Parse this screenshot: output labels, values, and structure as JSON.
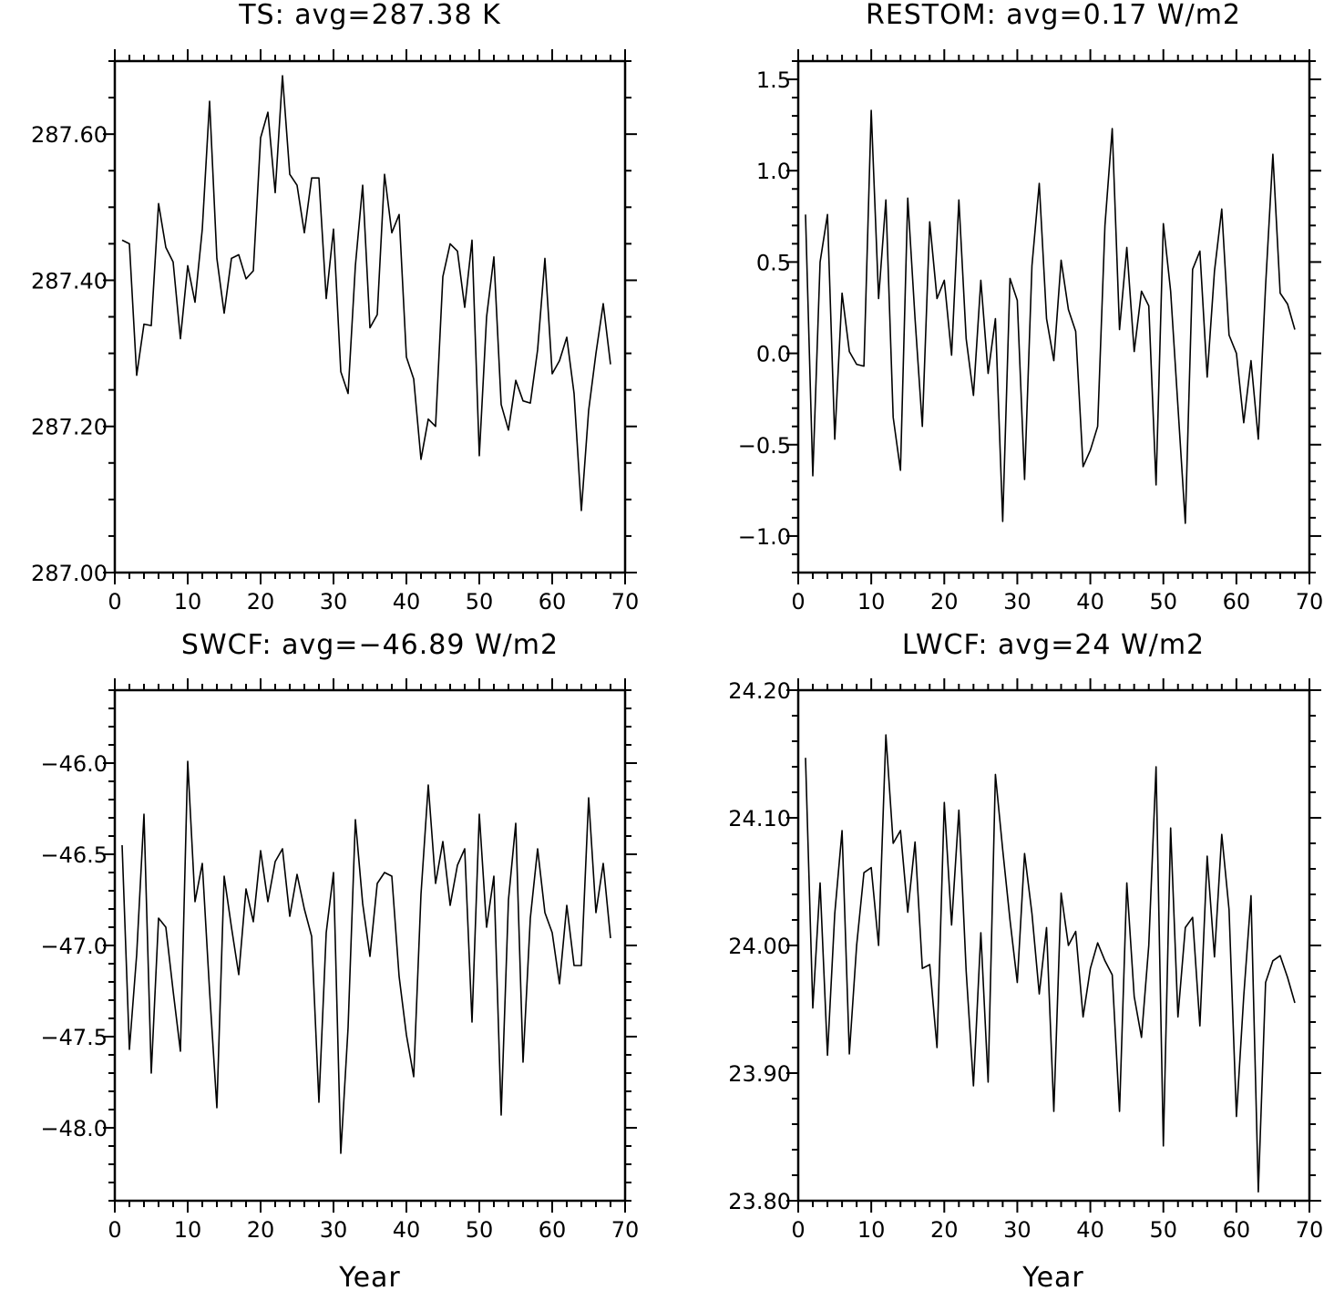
{
  "chart_data": [
    {
      "type": "line",
      "title": "TS: avg=287.38 K",
      "xlabel": "",
      "ylabel": "",
      "xlim": [
        0,
        70
      ],
      "ylim": [
        287.0,
        287.7
      ],
      "xticks": [
        0,
        10,
        20,
        30,
        40,
        50,
        60,
        70
      ],
      "yticks": [
        287.0,
        287.2,
        287.4,
        287.6
      ],
      "xtick_labels": [
        "0",
        "10",
        "20",
        "30",
        "40",
        "50",
        "60",
        "70"
      ],
      "ytick_labels": [
        "287.00",
        "287.20",
        "287.40",
        "287.60"
      ],
      "y_minor_step": 0.05,
      "x_minor_step": 2,
      "grid": false,
      "series": [
        {
          "x": [
            1,
            2,
            3,
            4,
            5,
            6,
            7,
            8,
            9,
            10,
            11,
            12,
            13,
            14,
            15,
            16,
            17,
            18,
            19,
            20,
            21,
            22,
            23,
            24,
            25,
            26,
            27,
            28,
            29,
            30,
            31,
            32,
            33,
            34,
            35,
            36,
            37,
            38,
            39,
            40,
            41,
            42,
            43,
            44,
            45,
            46,
            47,
            48,
            49,
            50,
            51,
            52,
            53,
            54,
            55,
            56,
            57,
            58,
            59,
            60,
            61,
            62,
            63,
            64,
            65,
            66,
            67,
            68
          ],
          "values": [
            287.455,
            287.45,
            287.27,
            287.34,
            287.338,
            287.505,
            287.445,
            287.425,
            287.32,
            287.42,
            287.37,
            287.47,
            287.645,
            287.43,
            287.355,
            287.43,
            287.435,
            287.402,
            287.413,
            287.595,
            287.63,
            287.52,
            287.68,
            287.545,
            287.53,
            287.465,
            287.54,
            287.54,
            287.375,
            287.47,
            287.275,
            287.245,
            287.42,
            287.53,
            287.335,
            287.353,
            287.545,
            287.465,
            287.49,
            287.295,
            287.265,
            287.155,
            287.21,
            287.2,
            287.405,
            287.45,
            287.44,
            287.363,
            287.455,
            287.16,
            287.35,
            287.432,
            287.23,
            287.195,
            287.263,
            287.235,
            287.232,
            287.305,
            287.43,
            287.272,
            287.29,
            287.322,
            287.245,
            287.085,
            287.222,
            287.3,
            287.368,
            287.285
          ]
        }
      ]
    },
    {
      "type": "line",
      "title": "RESTOM: avg=0.17 W/m2",
      "xlabel": "",
      "ylabel": "",
      "xlim": [
        0,
        70
      ],
      "ylim": [
        -1.2,
        1.6
      ],
      "xticks": [
        0,
        10,
        20,
        30,
        40,
        50,
        60,
        70
      ],
      "yticks": [
        -1.0,
        -0.5,
        0.0,
        0.5,
        1.0,
        1.5
      ],
      "xtick_labels": [
        "0",
        "10",
        "20",
        "30",
        "40",
        "50",
        "60",
        "70"
      ],
      "ytick_labels": [
        "−1.0",
        "−0.5",
        "0.0",
        "0.5",
        "1.0",
        "1.5"
      ],
      "y_minor_step": 0.1,
      "x_minor_step": 2,
      "grid": false,
      "series": [
        {
          "x": [
            1,
            2,
            3,
            4,
            5,
            6,
            7,
            8,
            9,
            10,
            11,
            12,
            13,
            14,
            15,
            16,
            17,
            18,
            19,
            20,
            21,
            22,
            23,
            24,
            25,
            26,
            27,
            28,
            29,
            30,
            31,
            32,
            33,
            34,
            35,
            36,
            37,
            38,
            39,
            40,
            41,
            42,
            43,
            44,
            45,
            46,
            47,
            48,
            49,
            50,
            51,
            52,
            53,
            54,
            55,
            56,
            57,
            58,
            59,
            60,
            61,
            62,
            63,
            64,
            65,
            66,
            67,
            68
          ],
          "values": [
            0.76,
            -0.67,
            0.5,
            0.76,
            -0.47,
            0.33,
            0.01,
            -0.06,
            -0.07,
            1.33,
            0.3,
            0.84,
            -0.35,
            -0.64,
            0.85,
            0.19,
            -0.4,
            0.72,
            0.3,
            0.4,
            -0.01,
            0.84,
            0.08,
            -0.23,
            0.4,
            -0.11,
            0.19,
            -0.92,
            0.41,
            0.29,
            -0.69,
            0.48,
            0.93,
            0.19,
            -0.04,
            0.51,
            0.24,
            0.12,
            -0.62,
            -0.53,
            -0.4,
            0.7,
            1.23,
            0.13,
            0.58,
            0.01,
            0.34,
            0.26,
            -0.72,
            0.71,
            0.34,
            -0.29,
            -0.93,
            0.46,
            0.56,
            -0.13,
            0.45,
            0.79,
            0.1,
            0.0,
            -0.38,
            -0.04,
            -0.47,
            0.37,
            1.09,
            0.33,
            0.27,
            0.13
          ]
        }
      ]
    },
    {
      "type": "line",
      "title": "SWCF: avg=−46.89 W/m2",
      "xlabel": "Year",
      "ylabel": "",
      "xlim": [
        0,
        70
      ],
      "ylim": [
        -48.4,
        -45.6
      ],
      "xticks": [
        0,
        10,
        20,
        30,
        40,
        50,
        60,
        70
      ],
      "yticks": [
        -48.0,
        -47.5,
        -47.0,
        -46.5,
        -46.0
      ],
      "xtick_labels": [
        "0",
        "10",
        "20",
        "30",
        "40",
        "50",
        "60",
        "70"
      ],
      "ytick_labels": [
        "−48.0",
        "−47.5",
        "−47.0",
        "−46.5",
        "−46.0"
      ],
      "y_minor_step": 0.1,
      "x_minor_step": 2,
      "grid": false,
      "series": [
        {
          "x": [
            1,
            2,
            3,
            4,
            5,
            6,
            7,
            8,
            9,
            10,
            11,
            12,
            13,
            14,
            15,
            16,
            17,
            18,
            19,
            20,
            21,
            22,
            23,
            24,
            25,
            26,
            27,
            28,
            29,
            30,
            31,
            32,
            33,
            34,
            35,
            36,
            37,
            38,
            39,
            40,
            41,
            42,
            43,
            44,
            45,
            46,
            47,
            48,
            49,
            50,
            51,
            52,
            53,
            54,
            55,
            56,
            57,
            58,
            59,
            60,
            61,
            62,
            63,
            64,
            65,
            66,
            67,
            68
          ],
          "values": [
            -46.45,
            -47.57,
            -47.05,
            -46.28,
            -47.7,
            -46.85,
            -46.9,
            -47.25,
            -47.58,
            -45.99,
            -46.76,
            -46.55,
            -47.25,
            -47.89,
            -46.62,
            -46.9,
            -47.16,
            -46.69,
            -46.87,
            -46.48,
            -46.76,
            -46.54,
            -46.47,
            -46.84,
            -46.61,
            -46.8,
            -46.95,
            -47.86,
            -46.93,
            -46.6,
            -48.14,
            -47.45,
            -46.31,
            -46.77,
            -47.06,
            -46.66,
            -46.6,
            -46.62,
            -47.17,
            -47.49,
            -47.72,
            -46.72,
            -46.12,
            -46.66,
            -46.43,
            -46.78,
            -46.56,
            -46.47,
            -47.42,
            -46.28,
            -46.9,
            -46.62,
            -47.93,
            -46.75,
            -46.33,
            -47.64,
            -46.85,
            -46.47,
            -46.82,
            -46.93,
            -47.21,
            -46.78,
            -47.11,
            -47.11,
            -46.19,
            -46.82,
            -46.55,
            -46.96
          ]
        }
      ]
    },
    {
      "type": "line",
      "title": "LWCF: avg=24 W/m2",
      "xlabel": "Year",
      "ylabel": "",
      "xlim": [
        0,
        70
      ],
      "ylim": [
        23.8,
        24.2
      ],
      "xticks": [
        0,
        10,
        20,
        30,
        40,
        50,
        60,
        70
      ],
      "yticks": [
        23.8,
        23.9,
        24.0,
        24.1,
        24.2
      ],
      "xtick_labels": [
        "0",
        "10",
        "20",
        "30",
        "40",
        "50",
        "60",
        "70"
      ],
      "ytick_labels": [
        "23.80",
        "23.90",
        "24.00",
        "24.10",
        "24.20"
      ],
      "y_minor_step": 0.02,
      "x_minor_step": 2,
      "grid": false,
      "series": [
        {
          "x": [
            1,
            2,
            3,
            4,
            5,
            6,
            7,
            8,
            9,
            10,
            11,
            12,
            13,
            14,
            15,
            16,
            17,
            18,
            19,
            20,
            21,
            22,
            23,
            24,
            25,
            26,
            27,
            28,
            29,
            30,
            31,
            32,
            33,
            34,
            35,
            36,
            37,
            38,
            39,
            40,
            41,
            42,
            43,
            44,
            45,
            46,
            47,
            48,
            49,
            50,
            51,
            52,
            53,
            54,
            55,
            56,
            57,
            58,
            59,
            60,
            61,
            62,
            63,
            64,
            65,
            66,
            67,
            68
          ],
          "values": [
            24.147,
            23.951,
            24.049,
            23.914,
            24.025,
            24.09,
            23.915,
            24.0,
            24.057,
            24.061,
            24.0,
            24.165,
            24.08,
            24.09,
            24.026,
            24.081,
            23.982,
            23.985,
            23.92,
            24.112,
            24.016,
            24.106,
            23.98,
            23.89,
            24.01,
            23.893,
            24.134,
            24.075,
            24.02,
            23.971,
            24.072,
            24.025,
            23.962,
            24.014,
            23.87,
            24.041,
            24.0,
            24.011,
            23.944,
            23.982,
            24.002,
            23.988,
            23.977,
            23.87,
            24.049,
            23.96,
            23.928,
            24.0,
            24.14,
            23.843,
            24.092,
            23.944,
            24.014,
            24.022,
            23.937,
            24.07,
            23.991,
            24.087,
            24.028,
            23.866,
            23.96,
            24.039,
            23.807,
            23.971,
            23.988,
            23.992,
            23.975,
            23.955
          ]
        }
      ]
    }
  ]
}
